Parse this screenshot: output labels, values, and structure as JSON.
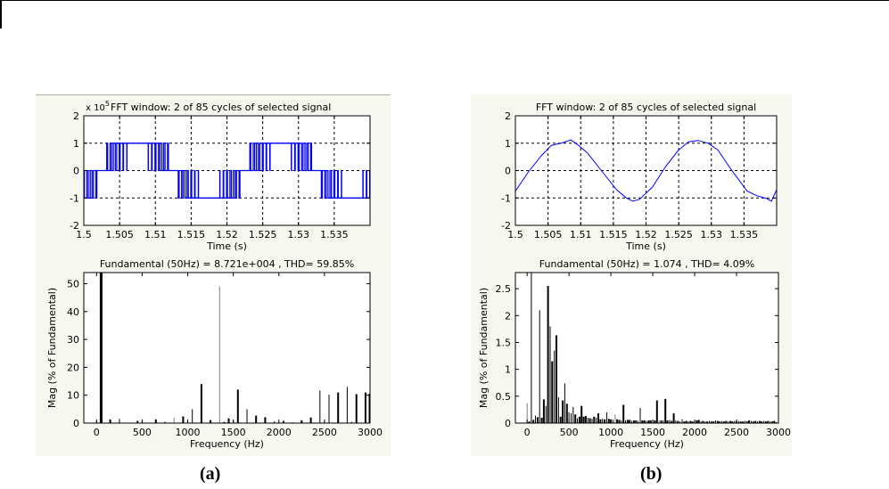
{
  "captions": {
    "a": "(a)",
    "b": "(b)"
  },
  "colors": {
    "signal": "#0000ff",
    "bar": "#000000",
    "bar_grey": "#808080",
    "fig_bg": "#f6f8f0"
  },
  "chart_data": [
    {
      "panel": "a-top",
      "type": "line",
      "title": "FFT window: 2 of 85 cycles of selected signal",
      "exponent_label": "x 10",
      "exponent_power": "5",
      "xlabel": "Time (s)",
      "ylabel": "",
      "xlim": [
        1.5,
        1.54
      ],
      "ylim": [
        -2,
        2
      ],
      "xticks": [
        "1.5",
        "1.505",
        "1.51",
        "1.515",
        "1.52",
        "1.525",
        "1.53",
        "1.535"
      ],
      "xtick_values": [
        1.5,
        1.505,
        1.51,
        1.515,
        1.52,
        1.525,
        1.53,
        1.535
      ],
      "yticks": [
        "-2",
        "-1",
        "0",
        "1",
        "2"
      ],
      "ytick_values": [
        -2,
        -1,
        0,
        1,
        2
      ],
      "grid": true,
      "signal": "pwm",
      "description_values": {
        "levels": [
          -1,
          0,
          1
        ],
        "frequency_hz": 50
      }
    },
    {
      "panel": "a-bottom",
      "type": "bar",
      "title": "Fundamental (50Hz) = 8.721e+004 , THD= 59.85%",
      "xlabel": "Frequency (Hz)",
      "ylabel": "Mag (% of Fundamental)",
      "xlim": [
        -140,
        3000
      ],
      "ylim": [
        0,
        54
      ],
      "xticks": [
        "0",
        "500",
        "1000",
        "1500",
        "2000",
        "2500",
        "3000"
      ],
      "xtick_values": [
        0,
        500,
        1000,
        1500,
        2000,
        2500,
        3000
      ],
      "yticks": [
        "0",
        "10",
        "20",
        "30",
        "40",
        "50"
      ],
      "ytick_values": [
        0,
        10,
        20,
        30,
        40,
        50
      ],
      "grid": false,
      "bars": [
        {
          "f": 0,
          "v": 0.8,
          "w": 1
        },
        {
          "f": 50,
          "v": 54,
          "w": 3
        },
        {
          "f": 150,
          "v": 1.3,
          "w": 2
        },
        {
          "f": 250,
          "v": 1.5,
          "w": 1
        },
        {
          "f": 450,
          "v": 0.8,
          "w": 2
        },
        {
          "f": 500,
          "v": 0.6,
          "w": 1
        },
        {
          "f": 650,
          "v": 1.3,
          "w": 2
        },
        {
          "f": 750,
          "v": 0.5,
          "w": 1
        },
        {
          "f": 850,
          "v": 2.0,
          "w": 1,
          "grey": true
        },
        {
          "f": 950,
          "v": 2.4,
          "w": 2
        },
        {
          "f": 1000,
          "v": 1.0,
          "w": 1
        },
        {
          "f": 1050,
          "v": 5.0,
          "w": 1
        },
        {
          "f": 1150,
          "v": 14.0,
          "w": 2
        },
        {
          "f": 1250,
          "v": 1.1,
          "w": 2
        },
        {
          "f": 1350,
          "v": 49.0,
          "w": 1,
          "grey": true
        },
        {
          "f": 1400,
          "v": 0.4,
          "w": 2
        },
        {
          "f": 1450,
          "v": 1.7,
          "w": 2
        },
        {
          "f": 1500,
          "v": 1.0,
          "w": 1
        },
        {
          "f": 1550,
          "v": 12.0,
          "w": 2
        },
        {
          "f": 1650,
          "v": 5.0,
          "w": 1
        },
        {
          "f": 1750,
          "v": 2.7,
          "w": 2
        },
        {
          "f": 1850,
          "v": 2.1,
          "w": 2
        },
        {
          "f": 1950,
          "v": 0.6,
          "w": 1
        },
        {
          "f": 2050,
          "v": 0.8,
          "w": 2
        },
        {
          "f": 2150,
          "v": 0.3,
          "w": 1
        },
        {
          "f": 2250,
          "v": 1.0,
          "w": 2
        },
        {
          "f": 2350,
          "v": 2.0,
          "w": 2
        },
        {
          "f": 2450,
          "v": 11.7,
          "w": 1
        },
        {
          "f": 2500,
          "v": 0.6,
          "w": 1
        },
        {
          "f": 2550,
          "v": 10.2,
          "w": 1
        },
        {
          "f": 2650,
          "v": 11.0,
          "w": 2
        },
        {
          "f": 2750,
          "v": 13.0,
          "w": 1
        },
        {
          "f": 2800,
          "v": 0.4,
          "w": 1
        },
        {
          "f": 2850,
          "v": 10.4,
          "w": 2
        },
        {
          "f": 2950,
          "v": 11.0,
          "w": 2
        },
        {
          "f": 2990,
          "v": 10.5,
          "w": 1
        }
      ]
    },
    {
      "panel": "b-top",
      "type": "line",
      "title": "FFT window: 2 of 85 cycles of selected signal",
      "xlabel": "Time (s)",
      "ylabel": "",
      "xlim": [
        1.5,
        1.54
      ],
      "ylim": [
        -2,
        2
      ],
      "xticks": [
        "1.5",
        "1.505",
        "1.51",
        "1.515",
        "1.52",
        "1.525",
        "1.53",
        "1.535"
      ],
      "xtick_values": [
        1.5,
        1.505,
        1.51,
        1.515,
        1.52,
        1.525,
        1.53,
        1.535
      ],
      "yticks": [
        "-2",
        "-1",
        "0",
        "1",
        "2"
      ],
      "ytick_values": [
        -2,
        -1,
        0,
        1,
        2
      ],
      "grid": true,
      "x": [
        1.5,
        1.502,
        1.504,
        1.5055,
        1.507,
        1.5085,
        1.5095,
        1.511,
        1.513,
        1.5155,
        1.517,
        1.518,
        1.519,
        1.521,
        1.523,
        1.525,
        1.5265,
        1.528,
        1.5295,
        1.531,
        1.533,
        1.5355,
        1.537,
        1.5385,
        1.5392,
        1.54
      ],
      "y": [
        -0.75,
        -0.05,
        0.55,
        0.92,
        1.0,
        1.12,
        0.95,
        0.65,
        0.05,
        -0.7,
        -1.0,
        -1.12,
        -1.05,
        -0.6,
        0.15,
        0.75,
        1.05,
        1.1,
        1.0,
        0.75,
        0.05,
        -0.75,
        -0.92,
        -1.02,
        -1.12,
        -0.7
      ]
    },
    {
      "panel": "b-bottom",
      "type": "bar",
      "title": "Fundamental (50Hz) = 1.074 , THD= 4.09%",
      "xlabel": "Frequency (Hz)",
      "ylabel": "Mag (% of Fundamental)",
      "xlim": [
        -140,
        3000
      ],
      "ylim": [
        0,
        2.8
      ],
      "xticks": [
        "0",
        "500",
        "1000",
        "1500",
        "2000",
        "2500",
        "3000"
      ],
      "xtick_values": [
        0,
        500,
        1000,
        1500,
        2000,
        2500,
        3000
      ],
      "yticks": [
        "0",
        "0.5",
        "1",
        "1.5",
        "2",
        "2.5"
      ],
      "ytick_values": [
        0,
        0.5,
        1,
        1.5,
        2,
        2.5
      ],
      "grid": false,
      "bars": [
        {
          "f": 0,
          "v": 0.37,
          "w": 1,
          "grey": true
        },
        {
          "f": 25,
          "v": 0.03,
          "w": 2
        },
        {
          "f": 50,
          "v": 2.8,
          "w": 1
        },
        {
          "f": 75,
          "v": 0.06,
          "w": 2
        },
        {
          "f": 100,
          "v": 0.14,
          "w": 1
        },
        {
          "f": 125,
          "v": 0.11,
          "w": 2
        },
        {
          "f": 150,
          "v": 2.1,
          "w": 1
        },
        {
          "f": 175,
          "v": 0.1,
          "w": 2
        },
        {
          "f": 200,
          "v": 0.44,
          "w": 2
        },
        {
          "f": 225,
          "v": 0.32,
          "w": 1
        },
        {
          "f": 250,
          "v": 2.55,
          "w": 2
        },
        {
          "f": 275,
          "v": 1.8,
          "w": 1
        },
        {
          "f": 300,
          "v": 1.15,
          "w": 2
        },
        {
          "f": 325,
          "v": 1.35,
          "w": 1
        },
        {
          "f": 350,
          "v": 1.63,
          "w": 2
        },
        {
          "f": 375,
          "v": 0.48,
          "w": 1
        },
        {
          "f": 400,
          "v": 0.12,
          "w": 2
        },
        {
          "f": 425,
          "v": 0.42,
          "w": 2
        },
        {
          "f": 450,
          "v": 0.74,
          "w": 1
        },
        {
          "f": 475,
          "v": 0.36,
          "w": 2
        },
        {
          "f": 500,
          "v": 0.2,
          "w": 1
        },
        {
          "f": 525,
          "v": 0.18,
          "w": 1
        },
        {
          "f": 550,
          "v": 0.3,
          "w": 1
        },
        {
          "f": 575,
          "v": 0.16,
          "w": 2
        },
        {
          "f": 600,
          "v": 0.09,
          "w": 1
        },
        {
          "f": 625,
          "v": 0.12,
          "w": 2
        },
        {
          "f": 650,
          "v": 0.32,
          "w": 2
        },
        {
          "f": 675,
          "v": 0.12,
          "w": 2
        },
        {
          "f": 700,
          "v": 0.13,
          "w": 2
        },
        {
          "f": 725,
          "v": 0.1,
          "w": 1
        },
        {
          "f": 750,
          "v": 0.09,
          "w": 2
        },
        {
          "f": 775,
          "v": 0.08,
          "w": 1
        },
        {
          "f": 800,
          "v": 0.12,
          "w": 2
        },
        {
          "f": 825,
          "v": 0.1,
          "w": 1
        },
        {
          "f": 850,
          "v": 0.18,
          "w": 2
        },
        {
          "f": 875,
          "v": 0.07,
          "w": 2
        },
        {
          "f": 900,
          "v": 0.08,
          "w": 1
        },
        {
          "f": 925,
          "v": 0.07,
          "w": 2
        },
        {
          "f": 950,
          "v": 0.2,
          "w": 1
        },
        {
          "f": 975,
          "v": 0.08,
          "w": 2
        },
        {
          "f": 1000,
          "v": 0.07,
          "w": 2
        },
        {
          "f": 1025,
          "v": 0.06,
          "w": 1
        },
        {
          "f": 1050,
          "v": 0.16,
          "w": 1,
          "grey": true
        },
        {
          "f": 1075,
          "v": 0.07,
          "w": 2
        },
        {
          "f": 1100,
          "v": 0.06,
          "w": 2
        },
        {
          "f": 1125,
          "v": 0.05,
          "w": 1
        },
        {
          "f": 1150,
          "v": 0.34,
          "w": 2
        },
        {
          "f": 1175,
          "v": 0.05,
          "w": 1
        },
        {
          "f": 1200,
          "v": 0.06,
          "w": 2
        },
        {
          "f": 1225,
          "v": 0.06,
          "w": 2
        },
        {
          "f": 1250,
          "v": 0.04,
          "w": 1
        },
        {
          "f": 1275,
          "v": 0.05,
          "w": 2
        },
        {
          "f": 1300,
          "v": 0.05,
          "w": 2
        },
        {
          "f": 1325,
          "v": 0.04,
          "w": 1
        },
        {
          "f": 1350,
          "v": 0.28,
          "w": 1
        },
        {
          "f": 1375,
          "v": 0.05,
          "w": 2
        },
        {
          "f": 1400,
          "v": 0.05,
          "w": 2
        },
        {
          "f": 1425,
          "v": 0.04,
          "w": 1
        },
        {
          "f": 1450,
          "v": 0.05,
          "w": 2
        },
        {
          "f": 1475,
          "v": 0.05,
          "w": 2
        },
        {
          "f": 1500,
          "v": 0.05,
          "w": 1
        },
        {
          "f": 1525,
          "v": 0.05,
          "w": 2
        },
        {
          "f": 1550,
          "v": 0.42,
          "w": 2
        },
        {
          "f": 1575,
          "v": 0.05,
          "w": 1,
          "grey": true
        },
        {
          "f": 1600,
          "v": 0.05,
          "w": 2
        },
        {
          "f": 1625,
          "v": 0.05,
          "w": 1
        },
        {
          "f": 1650,
          "v": 0.45,
          "w": 2
        },
        {
          "f": 1675,
          "v": 0.05,
          "w": 2
        },
        {
          "f": 1700,
          "v": 0.06,
          "w": 1
        },
        {
          "f": 1725,
          "v": 0.04,
          "w": 2
        },
        {
          "f": 1750,
          "v": 0.18,
          "w": 2
        },
        {
          "f": 1775,
          "v": 0.05,
          "w": 1
        },
        {
          "f": 1800,
          "v": 0.04,
          "w": 2
        },
        {
          "f": 1825,
          "v": 0.03,
          "w": 1
        },
        {
          "f": 1850,
          "v": 0.07,
          "w": 1
        },
        {
          "f": 1875,
          "v": 0.03,
          "w": 2
        },
        {
          "f": 1900,
          "v": 0.04,
          "w": 2
        },
        {
          "f": 1925,
          "v": 0.03,
          "w": 1
        },
        {
          "f": 1950,
          "v": 0.04,
          "w": 2
        },
        {
          "f": 1975,
          "v": 0.03,
          "w": 2
        },
        {
          "f": 2000,
          "v": 0.04,
          "w": 1
        },
        {
          "f": 2025,
          "v": 0.05,
          "w": 2
        },
        {
          "f": 2050,
          "v": 0.06,
          "w": 2
        },
        {
          "f": 2075,
          "v": 0.03,
          "w": 1
        },
        {
          "f": 2100,
          "v": 0.04,
          "w": 2
        },
        {
          "f": 2125,
          "v": 0.03,
          "w": 1
        },
        {
          "f": 2150,
          "v": 0.03,
          "w": 2
        },
        {
          "f": 2175,
          "v": 0.04,
          "w": 1
        },
        {
          "f": 2200,
          "v": 0.03,
          "w": 2
        },
        {
          "f": 2225,
          "v": 0.03,
          "w": 2
        },
        {
          "f": 2250,
          "v": 0.05,
          "w": 1
        },
        {
          "f": 2275,
          "v": 0.04,
          "w": 2
        },
        {
          "f": 2300,
          "v": 0.03,
          "w": 2
        },
        {
          "f": 2325,
          "v": 0.04,
          "w": 1
        },
        {
          "f": 2350,
          "v": 0.03,
          "w": 2
        },
        {
          "f": 2375,
          "v": 0.04,
          "w": 2
        },
        {
          "f": 2400,
          "v": 0.03,
          "w": 1
        },
        {
          "f": 2425,
          "v": 0.04,
          "w": 2
        },
        {
          "f": 2450,
          "v": 0.03,
          "w": 2
        },
        {
          "f": 2475,
          "v": 0.04,
          "w": 1
        },
        {
          "f": 2500,
          "v": 0.03,
          "w": 2
        },
        {
          "f": 2525,
          "v": 0.04,
          "w": 1
        },
        {
          "f": 2550,
          "v": 0.03,
          "w": 2
        },
        {
          "f": 2575,
          "v": 0.03,
          "w": 2
        },
        {
          "f": 2600,
          "v": 0.04,
          "w": 1
        },
        {
          "f": 2625,
          "v": 0.03,
          "w": 2
        },
        {
          "f": 2650,
          "v": 0.05,
          "w": 2
        },
        {
          "f": 2675,
          "v": 0.04,
          "w": 1
        },
        {
          "f": 2700,
          "v": 0.03,
          "w": 2
        },
        {
          "f": 2725,
          "v": 0.04,
          "w": 2
        },
        {
          "f": 2750,
          "v": 0.03,
          "w": 1
        },
        {
          "f": 2775,
          "v": 0.04,
          "w": 2
        },
        {
          "f": 2800,
          "v": 0.03,
          "w": 2
        },
        {
          "f": 2825,
          "v": 0.04,
          "w": 1
        },
        {
          "f": 2850,
          "v": 0.03,
          "w": 2
        },
        {
          "f": 2875,
          "v": 0.04,
          "w": 2
        },
        {
          "f": 2900,
          "v": 0.03,
          "w": 1
        },
        {
          "f": 2925,
          "v": 0.03,
          "w": 2
        },
        {
          "f": 2950,
          "v": 0.04,
          "w": 2
        },
        {
          "f": 2975,
          "v": 0.02,
          "w": 1
        }
      ]
    }
  ]
}
